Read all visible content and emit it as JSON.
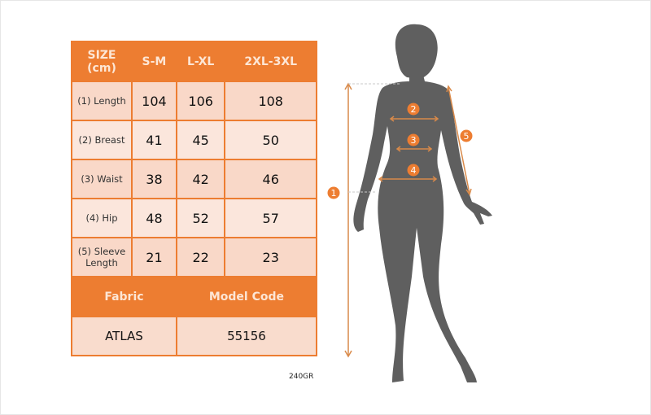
{
  "size_table": {
    "header": [
      "SIZE\n(cm)",
      "S-M",
      "L-XL",
      "2XL-3XL"
    ],
    "header_line1": "SIZE",
    "header_line2": "(cm)",
    "rows": [
      {
        "label": "(1) Length",
        "values": [
          "104",
          "106",
          "108"
        ]
      },
      {
        "label": "(2) Breast",
        "values": [
          "41",
          "45",
          "50"
        ]
      },
      {
        "label": "(3) Waist",
        "values": [
          "38",
          "42",
          "46"
        ]
      },
      {
        "label": "(4) Hip",
        "values": [
          "48",
          "52",
          "57"
        ]
      },
      {
        "label": "(5) Sleeve Length",
        "label_line1": "(5) Sleeve",
        "label_line2": "Length",
        "values": [
          "21",
          "22",
          "23"
        ]
      }
    ],
    "fabric_label": "Fabric",
    "model_code_label": "Model Code",
    "fabric_value": "ATLAS",
    "model_code_value": "55156"
  },
  "footer_code": "240GR",
  "figure": {
    "markers": [
      "1",
      "2",
      "3",
      "4",
      "5"
    ]
  },
  "colors": {
    "accent": "#ed7d31",
    "silhouette": "#5f5f5f"
  }
}
